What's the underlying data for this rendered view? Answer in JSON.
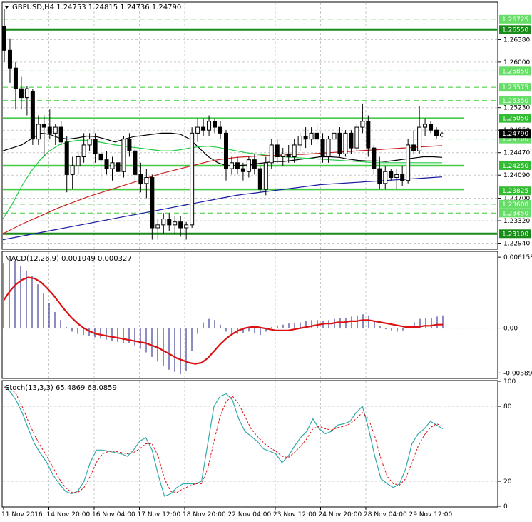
{
  "chart_data": {
    "type": "candlestick",
    "main": {
      "title": "GBPUSD,H4  1.24753 1.24815 1.24736 1.24790",
      "ylim": [
        1.2285,
        1.27
      ],
      "y_ticks": [
        "1.26380",
        "1.26000",
        "1.25230",
        "1.24850",
        "1.24470",
        "1.24090",
        "1.23700",
        "1.23320",
        "1.22940"
      ],
      "levels_thick": [
        {
          "label": "1.26550",
          "value": 1.2655,
          "color": "#1a8c1a"
        },
        {
          "label": "1.23100",
          "value": 1.231,
          "color": "#1a8c1a"
        }
      ],
      "levels_medium": [
        {
          "value": 1.2505,
          "x0": 0.0,
          "x1": 1.0
        },
        {
          "value": 1.2425,
          "x0": 0.54,
          "x1": 1.0
        },
        {
          "value": 1.2385,
          "x0": 0.33,
          "x1": 1.0
        }
      ],
      "levels_dashed": [
        {
          "label": "1.26725",
          "value": 1.26725
        },
        {
          "label": "1.25850",
          "value": 1.2585
        },
        {
          "label": "1.25575",
          "value": 1.25575
        },
        {
          "label": "1.25350",
          "value": 1.2535
        },
        {
          "label": "1.24700",
          "value": 1.247
        },
        {
          "label": "1.23600",
          "value": 1.236
        },
        {
          "label": "1.23450",
          "value": 1.2345
        }
      ],
      "labels_solid": [
        {
          "label": "1.25050",
          "value": 1.2505
        },
        {
          "label": "1.24250",
          "value": 1.2425
        },
        {
          "label": "1.23825",
          "value": 1.23825
        }
      ],
      "current_price": {
        "label": "1.24790",
        "value": 1.2479
      },
      "candles": [
        {
          "o": 1.266,
          "h": 1.269,
          "l": 1.26,
          "c": 1.262
        },
        {
          "o": 1.262,
          "h": 1.264,
          "l": 1.2565,
          "c": 1.259
        },
        {
          "o": 1.259,
          "h": 1.26,
          "l": 1.252,
          "c": 1.2555
        },
        {
          "o": 1.2555,
          "h": 1.2575,
          "l": 1.252,
          "c": 1.254
        },
        {
          "o": 1.254,
          "h": 1.256,
          "l": 1.251,
          "c": 1.2555
        },
        {
          "o": 1.255,
          "h": 1.2555,
          "l": 1.246,
          "c": 1.247
        },
        {
          "o": 1.247,
          "h": 1.251,
          "l": 1.246,
          "c": 1.2495
        },
        {
          "o": 1.2495,
          "h": 1.251,
          "l": 1.244,
          "c": 1.249
        },
        {
          "o": 1.249,
          "h": 1.252,
          "l": 1.247,
          "c": 1.248
        },
        {
          "o": 1.248,
          "h": 1.2495,
          "l": 1.246,
          "c": 1.249
        },
        {
          "o": 1.249,
          "h": 1.25,
          "l": 1.246,
          "c": 1.2465
        },
        {
          "o": 1.2465,
          "h": 1.2475,
          "l": 1.238,
          "c": 1.241
        },
        {
          "o": 1.241,
          "h": 1.244,
          "l": 1.2385,
          "c": 1.2425
        },
        {
          "o": 1.2425,
          "h": 1.245,
          "l": 1.241,
          "c": 1.244
        },
        {
          "o": 1.244,
          "h": 1.248,
          "l": 1.243,
          "c": 1.246
        },
        {
          "o": 1.246,
          "h": 1.248,
          "l": 1.245,
          "c": 1.247
        },
        {
          "o": 1.247,
          "h": 1.248,
          "l": 1.243,
          "c": 1.2445
        },
        {
          "o": 1.2445,
          "h": 1.246,
          "l": 1.24,
          "c": 1.2435
        },
        {
          "o": 1.2435,
          "h": 1.245,
          "l": 1.241,
          "c": 1.242
        },
        {
          "o": 1.242,
          "h": 1.244,
          "l": 1.24,
          "c": 1.243
        },
        {
          "o": 1.243,
          "h": 1.246,
          "l": 1.241,
          "c": 1.2415
        },
        {
          "o": 1.2415,
          "h": 1.2475,
          "l": 1.2405,
          "c": 1.247
        },
        {
          "o": 1.247,
          "h": 1.248,
          "l": 1.244,
          "c": 1.245
        },
        {
          "o": 1.245,
          "h": 1.246,
          "l": 1.24,
          "c": 1.241
        },
        {
          "o": 1.241,
          "h": 1.243,
          "l": 1.238,
          "c": 1.2395
        },
        {
          "o": 1.2395,
          "h": 1.242,
          "l": 1.237,
          "c": 1.2405
        },
        {
          "o": 1.2405,
          "h": 1.241,
          "l": 1.23,
          "c": 1.232
        },
        {
          "o": 1.232,
          "h": 1.2335,
          "l": 1.23,
          "c": 1.2325
        },
        {
          "o": 1.2325,
          "h": 1.2345,
          "l": 1.231,
          "c": 1.2335
        },
        {
          "o": 1.2335,
          "h": 1.2345,
          "l": 1.2315,
          "c": 1.2325
        },
        {
          "o": 1.2325,
          "h": 1.234,
          "l": 1.231,
          "c": 1.233
        },
        {
          "o": 1.233,
          "h": 1.234,
          "l": 1.2305,
          "c": 1.232
        },
        {
          "o": 1.232,
          "h": 1.233,
          "l": 1.23,
          "c": 1.2325
        },
        {
          "o": 1.2325,
          "h": 1.249,
          "l": 1.232,
          "c": 1.248
        },
        {
          "o": 1.248,
          "h": 1.2505,
          "l": 1.2465,
          "c": 1.249
        },
        {
          "o": 1.249,
          "h": 1.2505,
          "l": 1.2475,
          "c": 1.2485
        },
        {
          "o": 1.2485,
          "h": 1.251,
          "l": 1.2475,
          "c": 1.25
        },
        {
          "o": 1.25,
          "h": 1.2505,
          "l": 1.248,
          "c": 1.249
        },
        {
          "o": 1.249,
          "h": 1.25,
          "l": 1.247,
          "c": 1.248
        },
        {
          "o": 1.248,
          "h": 1.2485,
          "l": 1.24,
          "c": 1.242
        },
        {
          "o": 1.242,
          "h": 1.244,
          "l": 1.241,
          "c": 1.243
        },
        {
          "o": 1.243,
          "h": 1.244,
          "l": 1.241,
          "c": 1.242
        },
        {
          "o": 1.242,
          "h": 1.243,
          "l": 1.24,
          "c": 1.2415
        },
        {
          "o": 1.2415,
          "h": 1.244,
          "l": 1.2405,
          "c": 1.2435
        },
        {
          "o": 1.2435,
          "h": 1.2445,
          "l": 1.241,
          "c": 1.242
        },
        {
          "o": 1.242,
          "h": 1.2425,
          "l": 1.238,
          "c": 1.2385
        },
        {
          "o": 1.2385,
          "h": 1.244,
          "l": 1.2375,
          "c": 1.243
        },
        {
          "o": 1.243,
          "h": 1.247,
          "l": 1.242,
          "c": 1.246
        },
        {
          "o": 1.246,
          "h": 1.247,
          "l": 1.243,
          "c": 1.244
        },
        {
          "o": 1.244,
          "h": 1.2455,
          "l": 1.2425,
          "c": 1.2445
        },
        {
          "o": 1.2445,
          "h": 1.246,
          "l": 1.243,
          "c": 1.244
        },
        {
          "o": 1.244,
          "h": 1.247,
          "l": 1.243,
          "c": 1.246
        },
        {
          "o": 1.246,
          "h": 1.248,
          "l": 1.245,
          "c": 1.2475
        },
        {
          "o": 1.2475,
          "h": 1.249,
          "l": 1.2455,
          "c": 1.247
        },
        {
          "o": 1.247,
          "h": 1.249,
          "l": 1.246,
          "c": 1.248
        },
        {
          "o": 1.248,
          "h": 1.2495,
          "l": 1.246,
          "c": 1.247
        },
        {
          "o": 1.247,
          "h": 1.248,
          "l": 1.243,
          "c": 1.244
        },
        {
          "o": 1.244,
          "h": 1.2475,
          "l": 1.243,
          "c": 1.247
        },
        {
          "o": 1.247,
          "h": 1.2485,
          "l": 1.2445,
          "c": 1.248
        },
        {
          "o": 1.248,
          "h": 1.249,
          "l": 1.244,
          "c": 1.2445
        },
        {
          "o": 1.2445,
          "h": 1.2485,
          "l": 1.244,
          "c": 1.248
        },
        {
          "o": 1.248,
          "h": 1.2485,
          "l": 1.2445,
          "c": 1.2455
        },
        {
          "o": 1.2455,
          "h": 1.2495,
          "l": 1.245,
          "c": 1.249
        },
        {
          "o": 1.249,
          "h": 1.253,
          "l": 1.248,
          "c": 1.25
        },
        {
          "o": 1.25,
          "h": 1.251,
          "l": 1.244,
          "c": 1.2455
        },
        {
          "o": 1.2455,
          "h": 1.246,
          "l": 1.241,
          "c": 1.242
        },
        {
          "o": 1.242,
          "h": 1.244,
          "l": 1.2385,
          "c": 1.2395
        },
        {
          "o": 1.2395,
          "h": 1.2425,
          "l": 1.2385,
          "c": 1.2415
        },
        {
          "o": 1.2415,
          "h": 1.242,
          "l": 1.24,
          "c": 1.2405
        },
        {
          "o": 1.2405,
          "h": 1.242,
          "l": 1.2385,
          "c": 1.241
        },
        {
          "o": 1.241,
          "h": 1.2425,
          "l": 1.239,
          "c": 1.24
        },
        {
          "o": 1.24,
          "h": 1.247,
          "l": 1.2395,
          "c": 1.246
        },
        {
          "o": 1.246,
          "h": 1.2485,
          "l": 1.2445,
          "c": 1.245
        },
        {
          "o": 1.245,
          "h": 1.2525,
          "l": 1.2445,
          "c": 1.249
        },
        {
          "o": 1.249,
          "h": 1.2505,
          "l": 1.2475,
          "c": 1.2495
        },
        {
          "o": 1.2495,
          "h": 1.25,
          "l": 1.248,
          "c": 1.2485
        },
        {
          "o": 1.2485,
          "h": 1.249,
          "l": 1.247,
          "c": 1.2475
        },
        {
          "o": 1.2475,
          "h": 1.2482,
          "l": 1.2473,
          "c": 1.2479
        }
      ],
      "moving_averages": [
        {
          "name": "black",
          "color": "#000000",
          "values": [
            1.245,
            1.2455,
            1.246,
            1.247,
            1.248,
            1.2478,
            1.2472,
            1.247,
            1.2472,
            1.2475,
            1.2474,
            1.247,
            1.2465,
            1.247,
            1.2474,
            1.2476,
            1.2478,
            1.248,
            1.248,
            1.2478,
            1.247,
            1.2455,
            1.244,
            1.243,
            1.2425,
            1.2425,
            1.2426,
            1.2428,
            1.243,
            1.2432,
            1.2432,
            1.2434,
            1.2436,
            1.2438,
            1.244,
            1.244,
            1.2439,
            1.2436,
            1.2434,
            1.2433,
            1.2433,
            1.2432,
            1.2434,
            1.2436,
            1.2438,
            1.244,
            1.244,
            1.2439
          ]
        },
        {
          "name": "green",
          "color": "#22cc44",
          "values": [
            1.2335,
            1.236,
            1.239,
            1.2415,
            1.2435,
            1.245,
            1.246,
            1.2465,
            1.2468,
            1.2468,
            1.2466,
            1.2463,
            1.246,
            1.2458,
            1.2456,
            1.2454,
            1.2452,
            1.245,
            1.245,
            1.2452,
            1.2455,
            1.2457,
            1.2458,
            1.2456,
            1.2453,
            1.245,
            1.2447,
            1.2445,
            1.2443,
            1.2441,
            1.244,
            1.2439,
            1.2438,
            1.2437,
            1.2436,
            1.2435,
            1.2434,
            1.2433,
            1.2432,
            1.2431,
            1.243,
            1.243,
            1.243,
            1.243,
            1.243,
            1.243,
            1.243,
            1.243
          ]
        },
        {
          "name": "red",
          "color": "#cc2222",
          "values": [
            1.231,
            1.2318,
            1.2326,
            1.2333,
            1.234,
            1.2347,
            1.2354,
            1.236,
            1.2366,
            1.2372,
            1.2377,
            1.2382,
            1.2387,
            1.2392,
            1.2397,
            1.2402,
            1.2407,
            1.2412,
            1.2416,
            1.242,
            1.2424,
            1.2428,
            1.2432,
            1.2435,
            1.2437,
            1.2439,
            1.244,
            1.2441,
            1.2442,
            1.2442,
            1.2443,
            1.2444,
            1.2444,
            1.2445,
            1.2446,
            1.2447,
            1.2448,
            1.2449,
            1.245,
            1.2451,
            1.2452,
            1.2453,
            1.2454,
            1.2455,
            1.2456,
            1.2457,
            1.2458,
            1.2459
          ]
        },
        {
          "name": "blue",
          "color": "#1a1aa0",
          "values": [
            1.23,
            1.2303,
            1.2306,
            1.2309,
            1.2312,
            1.2315,
            1.2318,
            1.2321,
            1.2324,
            1.2327,
            1.233,
            1.2333,
            1.2336,
            1.2339,
            1.2342,
            1.2345,
            1.2348,
            1.2351,
            1.2354,
            1.2357,
            1.236,
            1.2363,
            1.2366,
            1.2369,
            1.2372,
            1.2375,
            1.2377,
            1.2379,
            1.2381,
            1.2383,
            1.2385,
            1.2387,
            1.2389,
            1.2391,
            1.2393,
            1.2394,
            1.2395,
            1.2396,
            1.2397,
            1.2398,
            1.2399,
            1.24,
            1.2401,
            1.2402,
            1.2403,
            1.2404,
            1.2405,
            1.2406
          ]
        }
      ]
    },
    "macd": {
      "title": "MACD(12,26,9) 0.001049 0.000327",
      "ylim": [
        -0.0043,
        0.0066
      ],
      "y_ticks": [
        "0.006158",
        "0.00",
        "-0.003891"
      ],
      "histogram": [
        0.0056,
        0.0059,
        0.0058,
        0.0054,
        0.005,
        0.0045,
        0.0038,
        0.003,
        0.0022,
        0.0014,
        0.0007,
        0.0001,
        -0.0003,
        -0.0005,
        -0.0006,
        -0.0007,
        -0.0008,
        -0.0009,
        -0.001,
        -0.0011,
        -0.0012,
        -0.0013,
        -0.0013,
        -0.0015,
        -0.0018,
        -0.0021,
        -0.0025,
        -0.0029,
        -0.0033,
        -0.0036,
        -0.0038,
        -0.004,
        -0.0037,
        -0.002,
        -0.0005,
        0.0005,
        0.0008,
        0.0007,
        0.0003,
        -0.0003,
        -0.0006,
        -0.0005,
        -0.0004,
        -0.0003,
        -0.0004,
        -0.0006,
        -0.0003,
        0.0001,
        0.0002,
        0.0003,
        0.0004,
        0.0004,
        0.0005,
        0.0006,
        0.0007,
        0.0007,
        0.0006,
        0.0007,
        0.0008,
        0.0009,
        0.0009,
        0.001,
        0.0011,
        0.0012,
        0.0011,
        0.0006,
        0.0002,
        -0.0001,
        -0.0002,
        -0.0003,
        -0.0002,
        0.0002,
        0.0005,
        0.0008,
        0.0009,
        0.0009,
        0.001,
        0.0011
      ],
      "signal": [
        0.0024,
        0.0032,
        0.0038,
        0.0042,
        0.0044,
        0.0043,
        0.004,
        0.0035,
        0.0029,
        0.0022,
        0.0015,
        0.0009,
        0.0004,
        0.0,
        -0.0003,
        -0.0005,
        -0.0006,
        -0.0007,
        -0.0008,
        -0.0009,
        -0.001,
        -0.0011,
        -0.0012,
        -0.0013,
        -0.0015,
        -0.0017,
        -0.002,
        -0.0023,
        -0.0026,
        -0.0028,
        -0.003,
        -0.0031,
        -0.003,
        -0.0026,
        -0.002,
        -0.0014,
        -0.0009,
        -0.0005,
        -0.0002,
        0.0,
        0.0001,
        0.0001,
        0.0,
        -0.0001,
        -0.0002,
        -0.0002,
        -0.0002,
        -0.0001,
        0.0,
        0.0001,
        0.0002,
        0.0003,
        0.0004,
        0.0004,
        0.0005,
        0.0005,
        0.0006,
        0.0006,
        0.0007,
        0.0007,
        0.0006,
        0.0005,
        0.0004,
        0.0003,
        0.0002,
        0.0001,
        0.0001,
        0.0001,
        0.0002,
        0.0002,
        0.0003,
        0.0003
      ]
    },
    "stoch": {
      "title": "Stoch(13,3,3) 65.4869 68.0859",
      "ylim": [
        0,
        100
      ],
      "y_ticks": [
        "100",
        "80",
        "20",
        "0"
      ],
      "levels": [
        80,
        20
      ],
      "k": [
        97,
        92,
        85,
        75,
        62,
        50,
        42,
        35,
        25,
        18,
        12,
        10,
        12,
        20,
        35,
        45,
        45,
        44,
        43,
        42,
        40,
        45,
        52,
        55,
        45,
        25,
        8,
        10,
        15,
        18,
        18,
        18,
        20,
        50,
        80,
        88,
        90,
        85,
        70,
        60,
        56,
        52,
        46,
        44,
        42,
        35,
        40,
        48,
        55,
        60,
        70,
        62,
        58,
        60,
        65,
        66,
        68,
        75,
        80,
        62,
        40,
        22,
        18,
        15,
        18,
        30,
        50,
        58,
        62,
        68,
        65,
        62
      ],
      "d": [
        95,
        95,
        90,
        80,
        68,
        57,
        48,
        40,
        31,
        22,
        15,
        11,
        11,
        15,
        24,
        35,
        42,
        44,
        44,
        43,
        42,
        43,
        46,
        50,
        50,
        40,
        22,
        12,
        11,
        14,
        16,
        18,
        18,
        30,
        52,
        72,
        84,
        88,
        82,
        72,
        62,
        56,
        51,
        47,
        44,
        40,
        39,
        43,
        48,
        54,
        62,
        64,
        62,
        61,
        63,
        64,
        66,
        70,
        75,
        70,
        56,
        38,
        24,
        18,
        17,
        22,
        35,
        48,
        57,
        63,
        66,
        64
      ]
    },
    "x_ticks": [
      "11 Nov 2016",
      "14 Nov 20:00",
      "16 Nov 04:00",
      "17 Nov 12:00",
      "18 Nov 20:00",
      "22 Nov 04:00",
      "23 Nov 12:00",
      "24 Nov 20:00",
      "28 Nov 04:00",
      "29 Nov 12:00"
    ]
  }
}
